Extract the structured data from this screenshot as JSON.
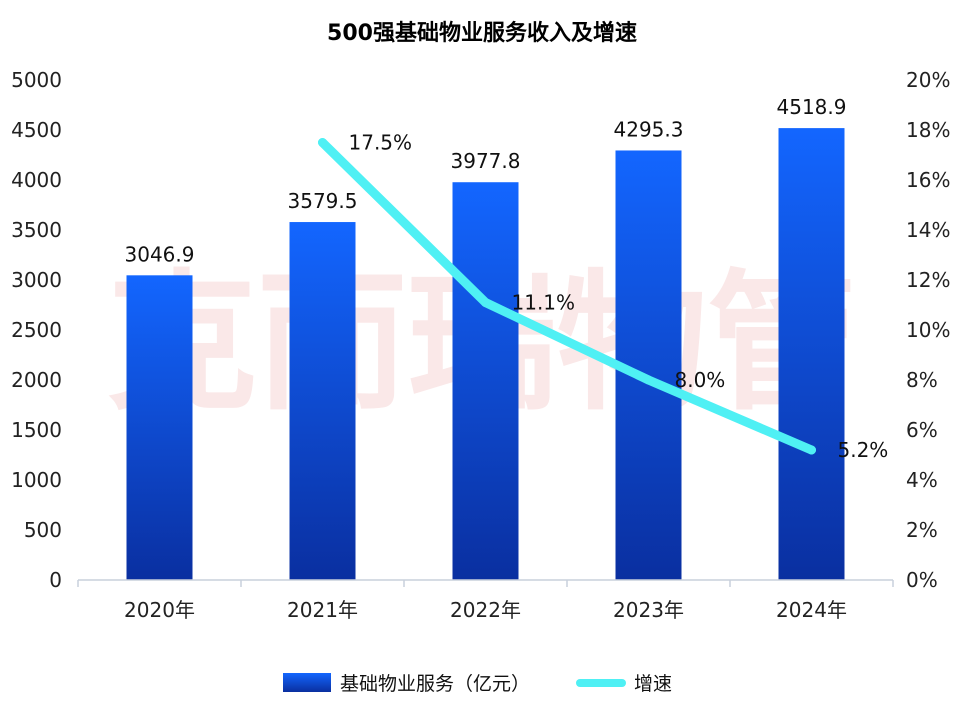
{
  "chart_data": {
    "type": "bar",
    "title": "500强基础物业服务收入及增速",
    "categories": [
      "2020年",
      "2021年",
      "2022年",
      "2023年",
      "2024年"
    ],
    "series": [
      {
        "name": "基础物业服务（亿元）",
        "kind": "bar",
        "axis": "left",
        "values": [
          3046.9,
          3579.5,
          3977.8,
          4295.3,
          4518.9
        ],
        "labels": [
          "3046.9",
          "3579.5",
          "3977.8",
          "4295.3",
          "4518.9"
        ],
        "color_top": "#1366ff",
        "color_bottom": "#0a2fa0"
      },
      {
        "name": "增速",
        "kind": "line",
        "axis": "right",
        "values": [
          null,
          17.5,
          11.1,
          8.0,
          5.2
        ],
        "labels": [
          null,
          "17.5%",
          "11.1%",
          "8.0%",
          "5.2%"
        ],
        "color": "#4ff0f4"
      }
    ],
    "y_left": {
      "ylim": [
        0,
        5000
      ],
      "ticks": [
        0,
        500,
        1000,
        1500,
        2000,
        2500,
        3000,
        3500,
        4000,
        4500,
        5000
      ]
    },
    "y_right": {
      "ylim": [
        0,
        20
      ],
      "ticks": [
        "0%",
        "2%",
        "4%",
        "6%",
        "8%",
        "10%",
        "12%",
        "14%",
        "16%",
        "18%",
        "20%"
      ]
    },
    "grid": false,
    "legend_position": "bottom",
    "watermark": "克而瑞物管"
  }
}
